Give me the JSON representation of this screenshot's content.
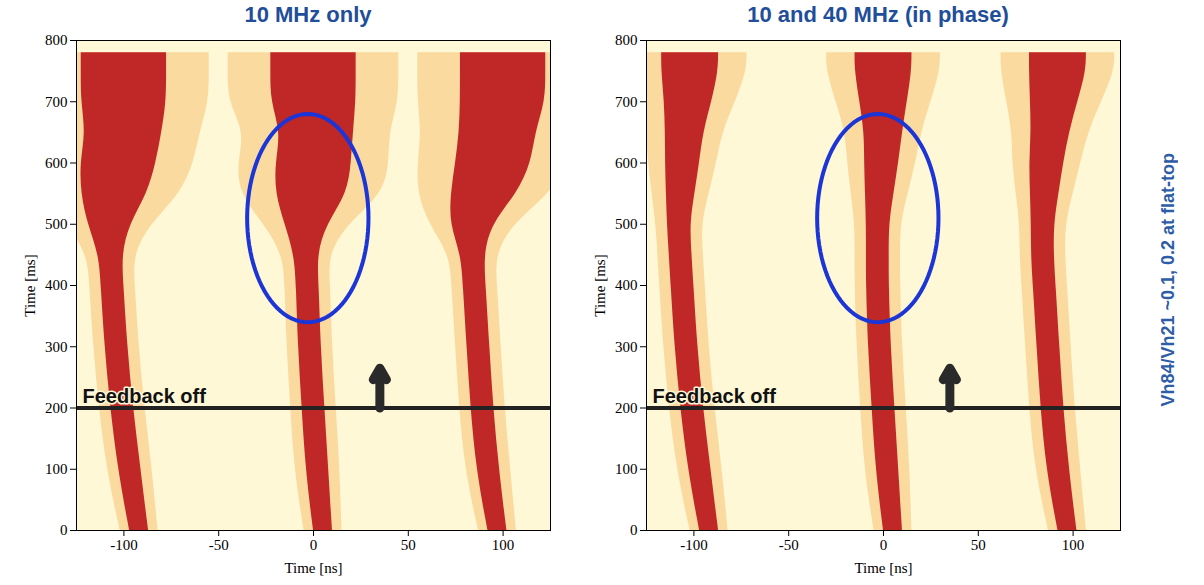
{
  "chart_data": [
    {
      "type": "band",
      "title": "10 MHz only",
      "x_label": "Time [ns]",
      "y_label": "Time [ms]",
      "xlim": [
        -125,
        125
      ],
      "xticks": [
        -100,
        -50,
        0,
        50,
        100
      ],
      "ylim": [
        0,
        800
      ],
      "yticks": [
        0,
        100,
        200,
        300,
        400,
        500,
        600,
        700,
        800
      ],
      "grid": false,
      "y": [
        0,
        100,
        200,
        300,
        400,
        450,
        500,
        550,
        600,
        650,
        700,
        750,
        780
      ],
      "series": [
        {
          "color": "#b8141a",
          "centers": [
            -92,
            -97,
            -101,
            -104,
            -106,
            -107,
            -108,
            -105,
            -103,
            -100,
            -100,
            -100,
            -100
          ],
          "widths": [
            10,
            12,
            12,
            12,
            12,
            12,
            22,
            35,
            40,
            40,
            45,
            45,
            45
          ]
        },
        {
          "color": "#b8141a",
          "centers": [
            5,
            2,
            0,
            -2,
            -3,
            -4,
            -4,
            -1,
            0,
            2,
            0,
            0,
            0
          ],
          "widths": [
            10,
            12,
            12,
            12,
            12,
            12,
            22,
            38,
            40,
            38,
            45,
            45,
            45
          ]
        },
        {
          "color": "#b8141a",
          "centers": [
            97,
            92,
            89,
            87,
            85,
            84,
            83,
            90,
            95,
            97,
            100,
            100,
            100
          ],
          "widths": [
            10,
            12,
            12,
            12,
            12,
            12,
            22,
            35,
            40,
            40,
            45,
            45,
            45
          ]
        }
      ],
      "annotations": [
        {
          "text": "Feedback off",
          "y": 200
        }
      ],
      "arrow": {
        "x": 35,
        "y1": 200,
        "y2": 265
      },
      "ellipse": {
        "x": -3,
        "y": 510,
        "rx": 32,
        "ry": 170
      }
    },
    {
      "type": "band",
      "title": "10 and 40 MHz (in phase)",
      "x_label": "Time [ns]",
      "y_label": "Time [ms]",
      "xlim": [
        -125,
        125
      ],
      "xticks": [
        -100,
        -50,
        0,
        50,
        100
      ],
      "ylim": [
        0,
        800
      ],
      "yticks": [
        0,
        100,
        200,
        300,
        400,
        500,
        600,
        700,
        800
      ],
      "grid": false,
      "y": [
        0,
        100,
        200,
        300,
        400,
        450,
        500,
        550,
        600,
        650,
        700,
        750,
        780
      ],
      "series": [
        {
          "color": "#b8141a",
          "centers": [
            -92,
            -97,
            -101,
            -104,
            -106,
            -107,
            -108,
            -107,
            -106,
            -105,
            -103,
            -102,
            -102
          ],
          "widths": [
            10,
            12,
            12,
            12,
            12,
            12,
            12,
            15,
            18,
            20,
            25,
            30,
            30
          ]
        },
        {
          "color": "#b8141a",
          "centers": [
            5,
            2,
            0,
            -2,
            -3,
            -3,
            -3,
            -2,
            -1,
            0,
            0,
            0,
            0
          ],
          "widths": [
            10,
            12,
            12,
            12,
            12,
            12,
            12,
            15,
            18,
            20,
            25,
            30,
            30
          ]
        },
        {
          "color": "#b8141a",
          "centers": [
            97,
            92,
            89,
            87,
            85,
            84,
            84,
            85,
            86,
            88,
            90,
            92,
            92
          ],
          "widths": [
            10,
            12,
            12,
            12,
            12,
            12,
            12,
            15,
            18,
            20,
            25,
            30,
            30
          ]
        }
      ],
      "annotations": [
        {
          "text": "Feedback off",
          "y": 200
        }
      ],
      "arrow": {
        "x": 35,
        "y1": 200,
        "y2": 265
      },
      "ellipse": {
        "x": -3,
        "y": 510,
        "rx": 32,
        "ry": 170
      }
    }
  ],
  "side_note": "Vh84/Vh21 ~0.1, 0.2 at flat-top"
}
